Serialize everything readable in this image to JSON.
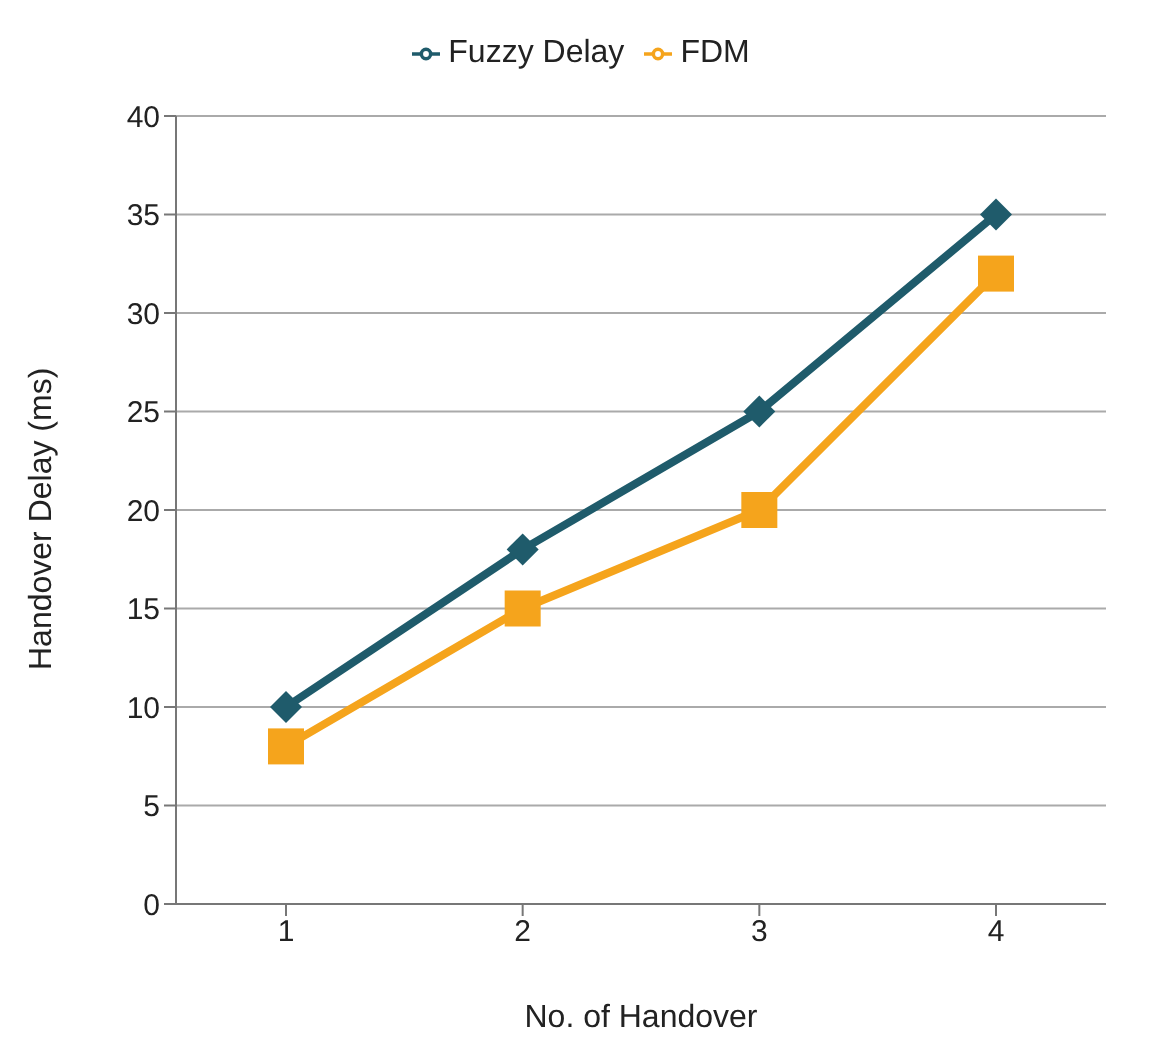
{
  "chart_data": {
    "type": "line",
    "xlabel": "No. of Handover",
    "ylabel": "Handover Delay (ms)",
    "categories": [
      "1",
      "2",
      "3",
      "4"
    ],
    "series": [
      {
        "name": "Fuzzy Delay",
        "color": "#1f5b6b",
        "marker": "diamond",
        "values": [
          10,
          18,
          25,
          35
        ]
      },
      {
        "name": "FDM",
        "color": "#f5a41c",
        "marker": "square",
        "values": [
          8,
          15,
          20,
          32
        ]
      }
    ],
    "ylim": [
      0,
      40
    ],
    "yticks": [
      0,
      5,
      10,
      15,
      20,
      25,
      30,
      35,
      40
    ],
    "grid": "y",
    "legend": "top"
  }
}
